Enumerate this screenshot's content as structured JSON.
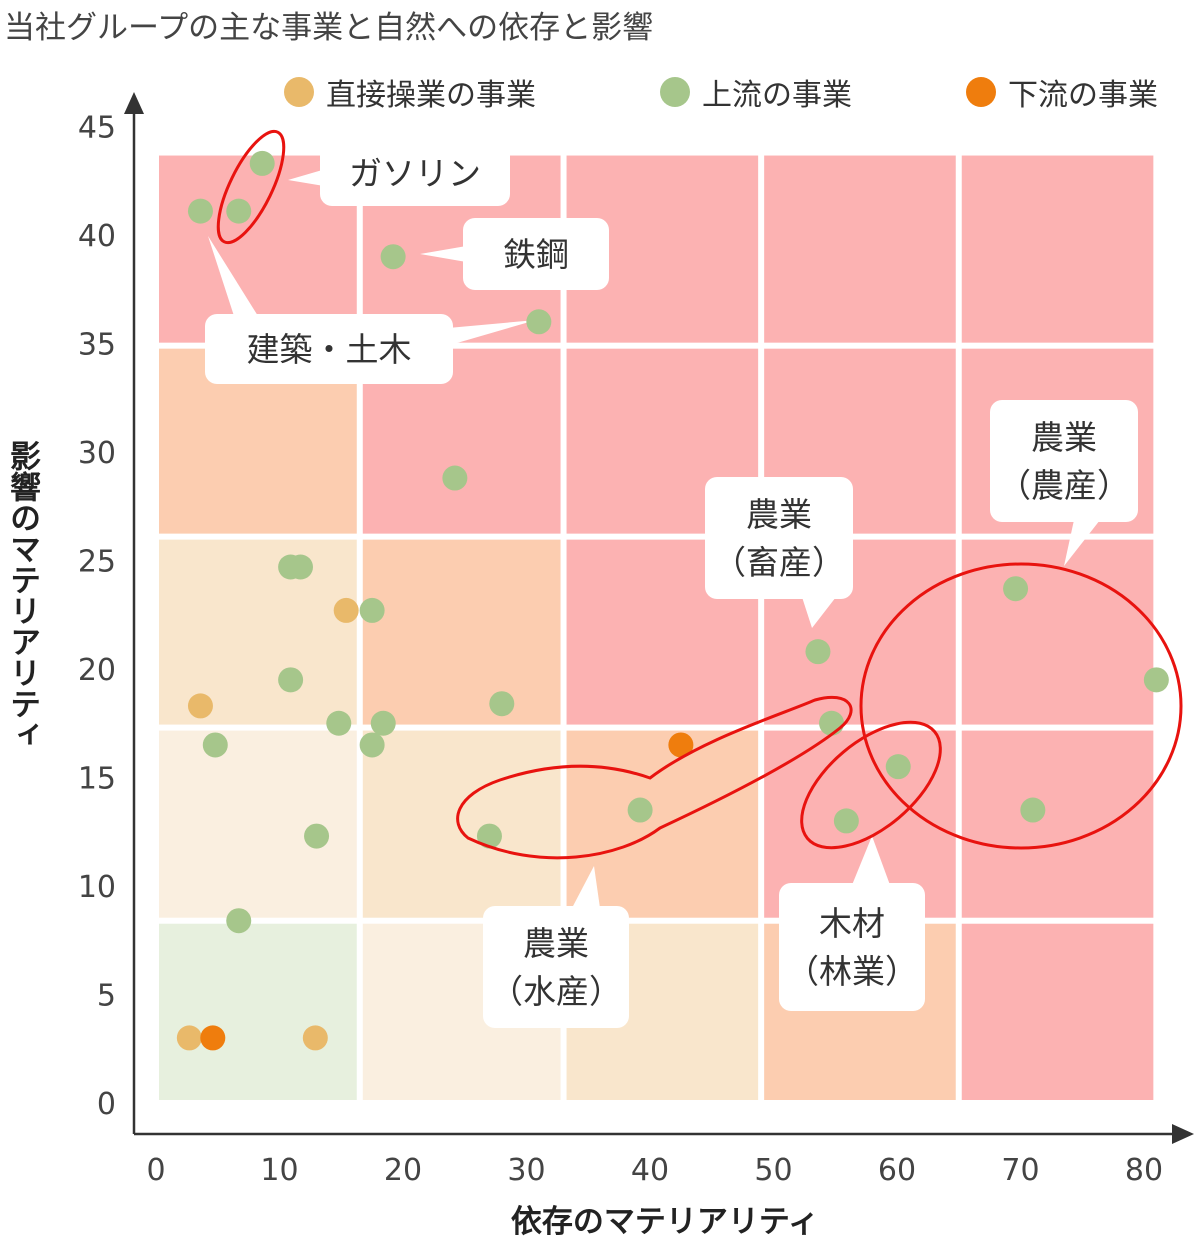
{
  "title": "当社グループの主な事業と自然への依存と影響",
  "legend": [
    {
      "label": "直接操業の事業",
      "color": "#e9b96a"
    },
    {
      "label": "上流の事業",
      "color": "#a6c68b"
    },
    {
      "label": "下流の事業",
      "color": "#ef7d0d"
    }
  ],
  "chart_data": {
    "type": "scatter",
    "xlabel": "依存のマテリアリティ",
    "ylabel": "影響のマテリアリティ",
    "xlim": [
      0,
      80
    ],
    "ylim": [
      0,
      45
    ],
    "xticks": [
      "0",
      "10",
      "20",
      "30",
      "40",
      "50",
      "60",
      "70",
      "80"
    ],
    "yticks": [
      "0",
      "5",
      "10",
      "15",
      "20",
      "25",
      "30",
      "35",
      "40",
      "45"
    ],
    "grid": true,
    "background_zones": {
      "x_edges": [
        0,
        16.5,
        33,
        49,
        65,
        81
      ],
      "y_edges": [
        0,
        8.4,
        17.3,
        26.1,
        34.9,
        43.8
      ],
      "level_colors": [
        "#e7f0de",
        "#faefe0",
        "#f9e6cc",
        "#fccdb0",
        "#fcb2b2"
      ],
      "levels": [
        [
          0,
          1,
          2,
          3,
          4
        ],
        [
          1,
          2,
          3,
          4,
          4
        ],
        [
          2,
          3,
          4,
          4,
          4
        ],
        [
          3,
          4,
          4,
          4,
          4
        ],
        [
          4,
          4,
          4,
          4,
          4
        ]
      ]
    },
    "series": [
      {
        "name": "直接操業の事業",
        "color": "#e9b96a",
        "points": [
          {
            "x": 3.6,
            "y": 18.3
          },
          {
            "x": 15.4,
            "y": 22.7
          },
          {
            "x": 2.7,
            "y": 3.0
          },
          {
            "x": 12.9,
            "y": 3.0
          }
        ]
      },
      {
        "name": "上流の事業",
        "color": "#a6c68b",
        "points": [
          {
            "x": 8.6,
            "y": 43.3
          },
          {
            "x": 3.6,
            "y": 41.1
          },
          {
            "x": 6.7,
            "y": 41.1
          },
          {
            "x": 19.2,
            "y": 39.0
          },
          {
            "x": 31.0,
            "y": 36.0
          },
          {
            "x": 24.2,
            "y": 28.8
          },
          {
            "x": 10.9,
            "y": 24.7
          },
          {
            "x": 11.7,
            "y": 24.7
          },
          {
            "x": 17.5,
            "y": 22.7
          },
          {
            "x": 10.9,
            "y": 19.5
          },
          {
            "x": 28.0,
            "y": 18.4
          },
          {
            "x": 4.8,
            "y": 16.5
          },
          {
            "x": 14.8,
            "y": 17.5
          },
          {
            "x": 18.4,
            "y": 17.5
          },
          {
            "x": 17.5,
            "y": 16.5
          },
          {
            "x": 13.0,
            "y": 12.3
          },
          {
            "x": 27.0,
            "y": 12.3
          },
          {
            "x": 39.2,
            "y": 13.5
          },
          {
            "x": 6.7,
            "y": 8.4
          },
          {
            "x": 53.6,
            "y": 20.8
          },
          {
            "x": 54.7,
            "y": 17.5
          },
          {
            "x": 60.1,
            "y": 15.5
          },
          {
            "x": 55.9,
            "y": 13.0
          },
          {
            "x": 69.6,
            "y": 23.7
          },
          {
            "x": 81.0,
            "y": 19.5
          },
          {
            "x": 71.0,
            "y": 13.5
          }
        ]
      },
      {
        "name": "下流の事業",
        "color": "#ef7d0d",
        "points": [
          {
            "x": 42.5,
            "y": 16.5
          },
          {
            "x": 4.6,
            "y": 3.0
          }
        ]
      }
    ],
    "annotations": [
      {
        "id": "gasoline",
        "lines": [
          "ガソリン"
        ]
      },
      {
        "id": "steel",
        "lines": [
          "鉄鋼"
        ]
      },
      {
        "id": "construction",
        "lines": [
          "建築・土木"
        ]
      },
      {
        "id": "agri-livestock",
        "lines": [
          "農業",
          "（畜産）"
        ]
      },
      {
        "id": "agri-crops",
        "lines": [
          "農業",
          "（農産）"
        ]
      },
      {
        "id": "agri-fishery",
        "lines": [
          "農業",
          "（水産）"
        ]
      },
      {
        "id": "timber",
        "lines": [
          "木材",
          "（林業）"
        ]
      }
    ]
  }
}
